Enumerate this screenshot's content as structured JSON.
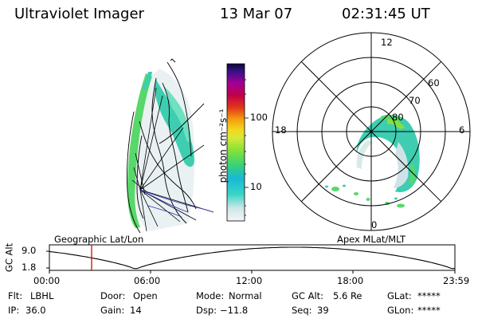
{
  "header": {
    "title": "Ultraviolet Imager",
    "date": "13 Mar 07",
    "time": "02:31:45 UT"
  },
  "colorbar": {
    "unit_label": "photon cm⁻²s⁻¹",
    "tick_labels": [
      "100",
      "10"
    ]
  },
  "polar_plot": {
    "mlt_labels": {
      "top": "12",
      "right": "6",
      "bottom": "0",
      "left": "18"
    },
    "lat_labels": [
      "60",
      "70",
      "80"
    ]
  },
  "panel_labels": {
    "left": "Geographic Lat/Lon",
    "right": "Apex MLat/MLT"
  },
  "altitude_plot": {
    "ylabel": "GC Alt",
    "yticks": [
      "9.0",
      "1.8"
    ],
    "xticks": [
      "00:00",
      "06:00",
      "12:00",
      "18:00",
      "23:59"
    ],
    "current_time_marker_color": "#e00000"
  },
  "status": {
    "row1": [
      {
        "key": "Flt:",
        "value": "LBHL"
      },
      {
        "key": "Door:",
        "value": "Open"
      },
      {
        "key": "Mode:",
        "value": "Normal"
      },
      {
        "key": "GC Alt:",
        "value": "5.6 Re"
      },
      {
        "key": "GLat:",
        "value": "*****"
      }
    ],
    "row2": [
      {
        "key": "IP:",
        "value": "36.0"
      },
      {
        "key": "Gain:",
        "value": "14"
      },
      {
        "key": "Dsp:",
        "value": "−11.8"
      },
      {
        "key": "Seq:",
        "value": "39"
      },
      {
        "key": "GLon:",
        "value": "*****"
      }
    ]
  },
  "colors": {
    "aurora_green": "#58d86a",
    "aurora_teal": "#3ecdb0",
    "aurora_pale": "#cfe3e6",
    "marker_red": "#e00000"
  }
}
